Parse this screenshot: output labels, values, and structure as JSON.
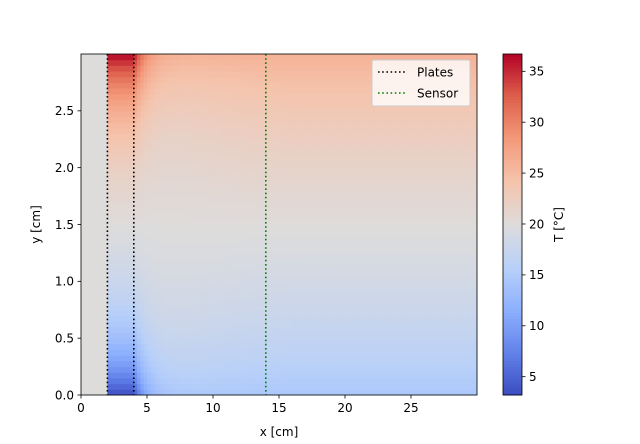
{
  "chart_data": {
    "type": "heatmap",
    "title": "",
    "xlabel": "x [cm]",
    "ylabel": "y [cm]",
    "xlim": [
      0,
      30
    ],
    "ylim": [
      0,
      3
    ],
    "x_ticks": [
      0,
      5,
      10,
      15,
      20,
      25
    ],
    "y_ticks": [
      0.0,
      0.5,
      1.0,
      1.5,
      2.0,
      2.5
    ],
    "x_tick_labels": [
      "0",
      "5",
      "10",
      "15",
      "20",
      "25"
    ],
    "y_tick_labels": [
      "0.0",
      "0.5",
      "1.0",
      "1.5",
      "2.0",
      "2.5"
    ],
    "colormap": "coolwarm",
    "colorbar": {
      "label": "T [°C]",
      "vmin": 3.2,
      "vmax": 36.7,
      "ticks": [
        5,
        10,
        15,
        20,
        25,
        30,
        35
      ],
      "tick_labels": [
        "5",
        "10",
        "15",
        "20",
        "25",
        "30",
        "35"
      ]
    },
    "field": {
      "description_grid": "temperature field T(x,y)",
      "ambient": 20.0,
      "hot_edge_y": 3.0,
      "cold_edge_y": 0.0,
      "hot_max": 36.7,
      "cold_min": 3.2,
      "far_field_top": 25.5,
      "far_field_bottom": 15.0,
      "boundary_layer_thickness_near": 0.55,
      "boundary_layer_thickness_far": 1.0,
      "source_x_start": 2.0,
      "source_x_end": 4.0
    },
    "lines": [
      {
        "name": "Plates",
        "x": 2.0,
        "color": "#000000",
        "style": "dotted"
      },
      {
        "name": "Plates",
        "x": 4.0,
        "color": "#000000",
        "style": "dotted"
      },
      {
        "name": "Sensor",
        "x": 14.0,
        "color": "#008000",
        "style": "dotted"
      }
    ],
    "legend": {
      "position": "top-right",
      "entries": [
        {
          "label": "Plates",
          "color": "#000000"
        },
        {
          "label": "Sensor",
          "color": "#008000"
        }
      ]
    },
    "grid": false
  }
}
